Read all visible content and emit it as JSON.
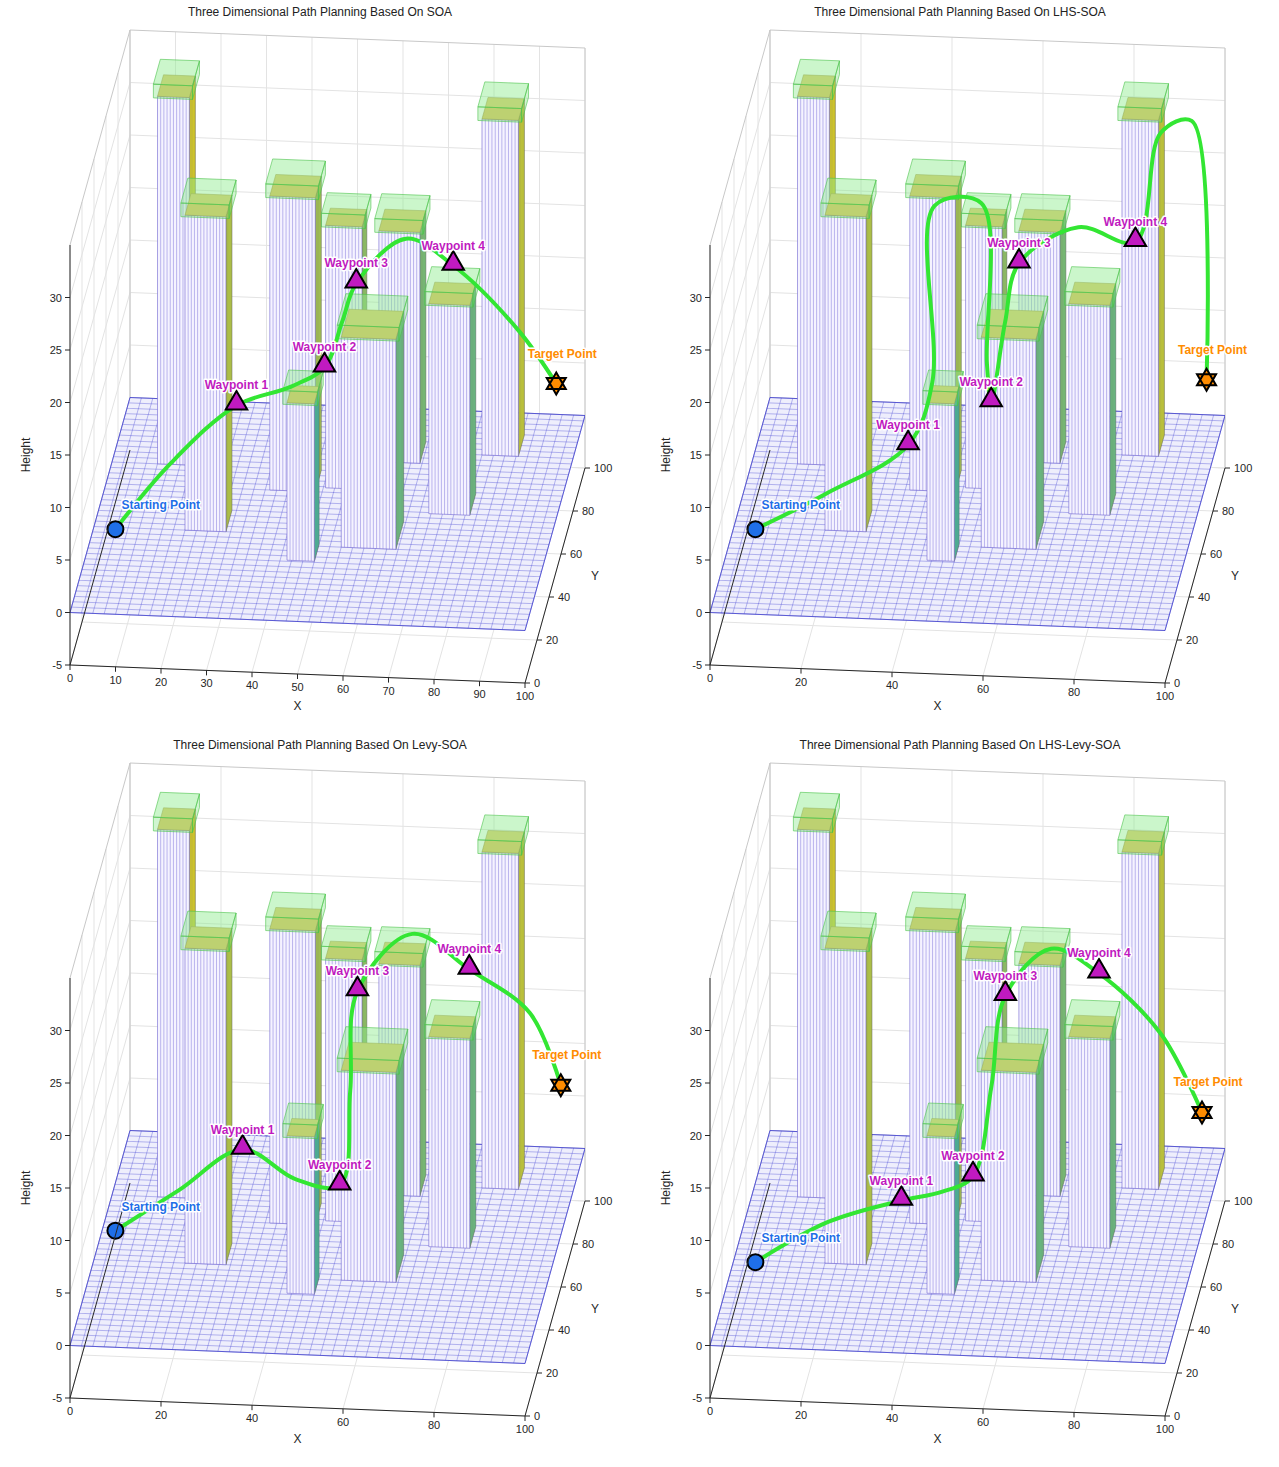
{
  "chart_data": [
    {
      "type": "3d-path",
      "title": "Three Dimensional Path Planning Based On SOA",
      "x_label": "X",
      "y_label": "Y",
      "z_label": "Height",
      "xlim": [
        0,
        100
      ],
      "xticks": [
        0,
        10,
        20,
        30,
        40,
        50,
        60,
        70,
        80,
        90,
        100
      ],
      "ylim": [
        0,
        100
      ],
      "yticks": [
        0,
        20,
        40,
        60,
        80,
        100
      ],
      "zlim": [
        -5,
        35
      ],
      "zticks": [
        -5,
        0,
        5,
        10,
        15,
        20,
        25,
        30
      ],
      "grid": true,
      "ground_height": 0,
      "buildings": [
        {
          "x": 80,
          "y": 80,
          "width": 8,
          "depth": 10,
          "height": 32
        },
        {
          "x": 58,
          "y": 75,
          "width": 9,
          "depth": 10,
          "height": 22
        },
        {
          "x": 10,
          "y": 70,
          "width": 7,
          "depth": 10,
          "height": 35
        },
        {
          "x": 36,
          "y": 60,
          "width": 10,
          "depth": 10,
          "height": 28
        },
        {
          "x": 48,
          "y": 62,
          "width": 8,
          "depth": 8,
          "height": 25
        },
        {
          "x": 72,
          "y": 52,
          "width": 9,
          "depth": 10,
          "height": 20
        },
        {
          "x": 20,
          "y": 40,
          "width": 9,
          "depth": 10,
          "height": 30
        },
        {
          "x": 55,
          "y": 35,
          "width": 12,
          "depth": 13,
          "height": 20
        },
        {
          "x": 44,
          "y": 28,
          "width": 6,
          "depth": 8,
          "height": 15
        }
      ],
      "path": {
        "x": [
          8,
          18,
          30,
          42,
          50,
          53,
          55,
          65,
          75,
          88,
          95
        ],
        "y": [
          15,
          32,
          50,
          50,
          45,
          52,
          60,
          67,
          70,
          80,
          90
        ],
        "z": [
          5,
          8,
          10,
          12,
          15,
          18,
          20,
          23,
          20,
          12,
          5
        ]
      },
      "color": "#33e633",
      "line_style": "solid",
      "points": [
        {
          "label": "Starting Point",
          "x": 8,
          "y": 15,
          "z": 5,
          "marker": "circle",
          "color": "#1f6fe8"
        },
        {
          "label": "Waypoint 1",
          "x": 30,
          "y": 50,
          "z": 10,
          "marker": "triangle",
          "color": "#c01ac0"
        },
        {
          "label": "Waypoint 2",
          "x": 50,
          "y": 45,
          "z": 15,
          "marker": "triangle",
          "color": "#c01ac0"
        },
        {
          "label": "Waypoint 3",
          "x": 55,
          "y": 60,
          "z": 20,
          "marker": "triangle",
          "color": "#c01ac0"
        },
        {
          "label": "Waypoint 4",
          "x": 75,
          "y": 70,
          "z": 20,
          "marker": "triangle",
          "color": "#c01ac0"
        },
        {
          "label": "Target Point",
          "x": 95,
          "y": 90,
          "z": 5,
          "marker": "star",
          "color": "#ff8c00"
        }
      ]
    },
    {
      "type": "3d-path",
      "title": "Three Dimensional Path Planning Based On LHS-SOA",
      "x_label": "X",
      "y_label": "Y",
      "z_label": "Height",
      "xlim": [
        0,
        100
      ],
      "xticks": [
        0,
        20,
        40,
        60,
        80,
        100
      ],
      "ylim": [
        0,
        100
      ],
      "yticks": [
        0,
        20,
        40,
        60,
        80,
        100
      ],
      "zlim": [
        -5,
        35
      ],
      "zticks": [
        -5,
        0,
        5,
        10,
        15,
        20,
        25,
        30
      ],
      "grid": true,
      "ground_height": 0,
      "buildings": [
        {
          "x": 80,
          "y": 80,
          "width": 8,
          "depth": 10,
          "height": 32
        },
        {
          "x": 58,
          "y": 75,
          "width": 9,
          "depth": 10,
          "height": 22
        },
        {
          "x": 10,
          "y": 70,
          "width": 7,
          "depth": 10,
          "height": 35
        },
        {
          "x": 36,
          "y": 60,
          "width": 10,
          "depth": 10,
          "height": 28
        },
        {
          "x": 48,
          "y": 62,
          "width": 8,
          "depth": 8,
          "height": 25
        },
        {
          "x": 72,
          "y": 52,
          "width": 9,
          "depth": 10,
          "height": 20
        },
        {
          "x": 20,
          "y": 40,
          "width": 9,
          "depth": 10,
          "height": 30
        },
        {
          "x": 55,
          "y": 35,
          "width": 12,
          "depth": 13,
          "height": 20
        },
        {
          "x": 44,
          "y": 28,
          "width": 6,
          "depth": 8,
          "height": 15
        }
      ],
      "path": {
        "x": [
          8,
          22,
          38,
          42,
          42,
          52,
          54,
          56,
          58,
          60,
          72,
          84,
          88,
          94,
          97
        ],
        "y": [
          15,
          28,
          42,
          52,
          56,
          58,
          52,
          44,
          52,
          60,
          68,
          72,
          84,
          90,
          92
        ],
        "z": [
          5,
          6,
          8,
          12,
          28,
          28,
          14,
          12,
          18,
          22,
          24,
          22,
          30,
          30,
          5
        ]
      },
      "color": "#33e633",
      "line_style": "solid",
      "points": [
        {
          "label": "Starting Point",
          "x": 8,
          "y": 15,
          "z": 5,
          "marker": "circle",
          "color": "#1f6fe8"
        },
        {
          "label": "Waypoint 1",
          "x": 38,
          "y": 42,
          "z": 8,
          "marker": "triangle",
          "color": "#c01ac0"
        },
        {
          "label": "Waypoint 2",
          "x": 56,
          "y": 44,
          "z": 12,
          "marker": "triangle",
          "color": "#c01ac0"
        },
        {
          "label": "Waypoint 3",
          "x": 60,
          "y": 60,
          "z": 22,
          "marker": "triangle",
          "color": "#c01ac0"
        },
        {
          "label": "Waypoint 4",
          "x": 84,
          "y": 72,
          "z": 22,
          "marker": "triangle",
          "color": "#c01ac0"
        },
        {
          "label": "Target Point",
          "x": 97,
          "y": 92,
          "z": 5,
          "marker": "star",
          "color": "#ff8c00"
        }
      ]
    },
    {
      "type": "3d-path",
      "title": "Three Dimensional Path Planning Based On Levy-SOA",
      "x_label": "X",
      "y_label": "Y",
      "z_label": "Height",
      "xlim": [
        0,
        100
      ],
      "xticks": [
        0,
        20,
        40,
        60,
        80,
        100
      ],
      "ylim": [
        0,
        100
      ],
      "yticks": [
        0,
        20,
        40,
        60,
        80,
        100
      ],
      "zlim": [
        -5,
        35
      ],
      "zticks": [
        -5,
        0,
        5,
        10,
        15,
        20,
        25,
        30
      ],
      "grid": true,
      "ground_height": 0,
      "buildings": [
        {
          "x": 80,
          "y": 80,
          "width": 8,
          "depth": 10,
          "height": 32
        },
        {
          "x": 58,
          "y": 75,
          "width": 9,
          "depth": 10,
          "height": 22
        },
        {
          "x": 10,
          "y": 70,
          "width": 7,
          "depth": 10,
          "height": 35
        },
        {
          "x": 36,
          "y": 60,
          "width": 10,
          "depth": 10,
          "height": 28
        },
        {
          "x": 48,
          "y": 62,
          "width": 8,
          "depth": 8,
          "height": 25
        },
        {
          "x": 72,
          "y": 52,
          "width": 9,
          "depth": 10,
          "height": 20
        },
        {
          "x": 20,
          "y": 40,
          "width": 9,
          "depth": 10,
          "height": 30
        },
        {
          "x": 55,
          "y": 35,
          "width": 12,
          "depth": 13,
          "height": 20
        },
        {
          "x": 44,
          "y": 28,
          "width": 6,
          "depth": 8,
          "height": 15
        }
      ],
      "path": {
        "x": [
          8,
          20,
          32,
          44,
          54,
          55,
          55,
          66,
          78,
          90,
          96
        ],
        "y": [
          15,
          30,
          45,
          42,
          40,
          50,
          62,
          70,
          74,
          84,
          90
        ],
        "z": [
          8,
          9,
          10,
          8,
          8,
          15,
          22,
          26,
          22,
          16,
          8
        ]
      },
      "color": "#33e633",
      "line_style": "solid",
      "points": [
        {
          "label": "Starting Point",
          "x": 8,
          "y": 15,
          "z": 8,
          "marker": "circle",
          "color": "#1f6fe8"
        },
        {
          "label": "Waypoint 1",
          "x": 32,
          "y": 45,
          "z": 10,
          "marker": "triangle",
          "color": "#c01ac0"
        },
        {
          "label": "Waypoint 2",
          "x": 54,
          "y": 40,
          "z": 8,
          "marker": "triangle",
          "color": "#c01ac0"
        },
        {
          "label": "Waypoint 3",
          "x": 55,
          "y": 62,
          "z": 22,
          "marker": "triangle",
          "color": "#c01ac0"
        },
        {
          "label": "Waypoint 4",
          "x": 78,
          "y": 74,
          "z": 22,
          "marker": "triangle",
          "color": "#c01ac0"
        },
        {
          "label": "Target Point",
          "x": 96,
          "y": 90,
          "z": 8,
          "marker": "star",
          "color": "#ff8c00"
        }
      ]
    },
    {
      "type": "3d-path",
      "title": "Three Dimensional Path Planning Based On LHS-Levy-SOA",
      "x_label": "X",
      "y_label": "Y",
      "z_label": "Height",
      "xlim": [
        0,
        100
      ],
      "xticks": [
        0,
        20,
        40,
        60,
        80,
        100
      ],
      "ylim": [
        0,
        100
      ],
      "yticks": [
        0,
        20,
        40,
        60,
        80,
        100
      ],
      "zlim": [
        -5,
        35
      ],
      "zticks": [
        -5,
        0,
        5,
        10,
        15,
        20,
        25,
        30
      ],
      "grid": true,
      "ground_height": 0,
      "buildings": [
        {
          "x": 80,
          "y": 80,
          "width": 8,
          "depth": 10,
          "height": 32
        },
        {
          "x": 58,
          "y": 75,
          "width": 9,
          "depth": 10,
          "height": 22
        },
        {
          "x": 10,
          "y": 70,
          "width": 7,
          "depth": 10,
          "height": 35
        },
        {
          "x": 36,
          "y": 60,
          "width": 10,
          "depth": 10,
          "height": 28
        },
        {
          "x": 48,
          "y": 62,
          "width": 8,
          "depth": 8,
          "height": 25
        },
        {
          "x": 72,
          "y": 52,
          "width": 9,
          "depth": 10,
          "height": 20
        },
        {
          "x": 20,
          "y": 40,
          "width": 9,
          "depth": 10,
          "height": 30
        },
        {
          "x": 55,
          "y": 35,
          "width": 12,
          "depth": 13,
          "height": 20
        },
        {
          "x": 44,
          "y": 28,
          "width": 6,
          "depth": 8,
          "height": 15
        }
      ],
      "path": {
        "x": [
          8,
          22,
          36,
          45,
          52,
          55,
          57,
          66,
          76,
          88,
          96
        ],
        "y": [
          15,
          30,
          46,
          46,
          44,
          52,
          60,
          68,
          72,
          84,
          92
        ],
        "z": [
          5,
          6,
          5,
          6,
          8,
          15,
          22,
          25,
          22,
          14,
          5
        ]
      },
      "color": "#33e633",
      "line_style": "solid",
      "points": [
        {
          "label": "Starting Point",
          "x": 8,
          "y": 15,
          "z": 5,
          "marker": "circle",
          "color": "#1f6fe8"
        },
        {
          "label": "Waypoint 1",
          "x": 36,
          "y": 46,
          "z": 5,
          "marker": "triangle",
          "color": "#c01ac0"
        },
        {
          "label": "Waypoint 2",
          "x": 52,
          "y": 44,
          "z": 8,
          "marker": "triangle",
          "color": "#c01ac0"
        },
        {
          "label": "Waypoint 3",
          "x": 57,
          "y": 60,
          "z": 22,
          "marker": "triangle",
          "color": "#c01ac0"
        },
        {
          "label": "Waypoint 4",
          "x": 76,
          "y": 72,
          "z": 22,
          "marker": "triangle",
          "color": "#c01ac0"
        },
        {
          "label": "Target Point",
          "x": 96,
          "y": 92,
          "z": 5,
          "marker": "star",
          "color": "#ff8c00"
        }
      ]
    }
  ]
}
